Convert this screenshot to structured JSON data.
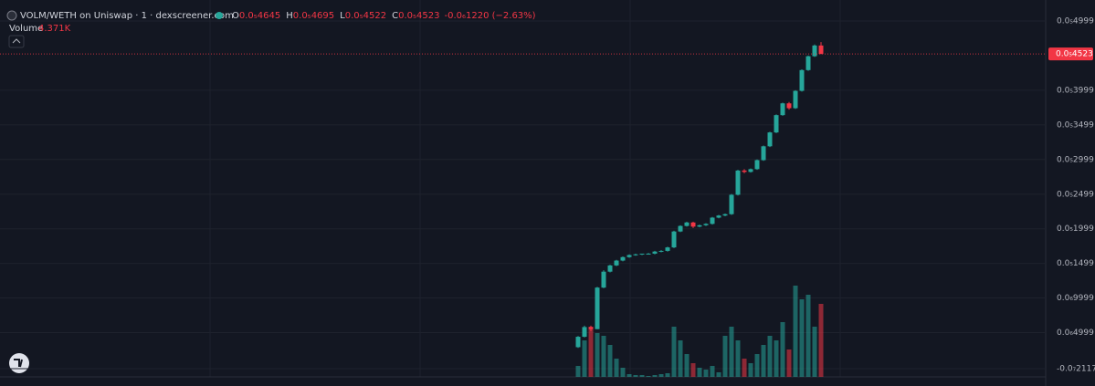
{
  "chart_data": {
    "type": "candlestick",
    "title": "VOLM/WETH on Uniswap · 1 · dexscreener.com",
    "legend": [
      {
        "key": "O",
        "value": "0.0₅4645"
      },
      {
        "key": "H",
        "value": "0.0₅4695"
      },
      {
        "key": "L",
        "value": "0.0₅4522"
      },
      {
        "key": "C",
        "value": "0.0₅4523"
      }
    ],
    "change_label": "-0.0₆1220 (−2.63%)",
    "volume_title": "Volume",
    "volume_label": "4.371K",
    "last_price_label": "0.0₅4523",
    "up_color": "#26a69a",
    "down_color": "#f23645",
    "grid": true,
    "ylim": [
      -1.39e-07,
      5.302e-06
    ],
    "yticks": [
      {
        "value": 4.999e-06,
        "label": "0.0₅4999"
      },
      {
        "value": 3.999e-06,
        "label": "0.0₅3999"
      },
      {
        "value": 3.499e-06,
        "label": "0.0₅3499"
      },
      {
        "value": 2.999e-06,
        "label": "0.0₅2999"
      },
      {
        "value": 2.499e-06,
        "label": "0.0₅2499"
      },
      {
        "value": 1.999e-06,
        "label": "0.0₅1999"
      },
      {
        "value": 1.499e-06,
        "label": "0.0₅1499"
      },
      {
        "value": 9.999e-07,
        "label": "0.0₆9999"
      },
      {
        "value": 4.999e-07,
        "label": "0.0₆4999"
      },
      {
        "value": -2.117e-08,
        "label": "-0.0₇2117"
      }
    ],
    "candles": {
      "open": [
        2.9e-07,
        4.4e-07,
        5.8e-07,
        5.5e-07,
        1.15e-06,
        1.38e-06,
        1.47e-06,
        1.54e-06,
        1.59e-06,
        1.62e-06,
        1.63e-06,
        1.64e-06,
        1.64e-06,
        1.67e-06,
        1.68e-06,
        1.73e-06,
        1.96e-06,
        2.04e-06,
        2.09e-06,
        2.03e-06,
        2.05e-06,
        2.07e-06,
        2.16e-06,
        2.19e-06,
        2.21e-06,
        2.49e-06,
        2.84e-06,
        2.82e-06,
        2.86e-06,
        2.99e-06,
        3.19e-06,
        3.39e-06,
        3.64e-06,
        3.81e-06,
        3.74e-06,
        3.99e-06,
        4.29e-06,
        4.49e-06,
        4.645e-06
      ],
      "high": [
        4.5e-07,
        6e-07,
        6e-07,
        1.16e-06,
        1.4e-06,
        1.48e-06,
        1.55e-06,
        1.6e-06,
        1.63e-06,
        1.64e-06,
        1.64e-06,
        1.65e-06,
        1.68e-06,
        1.69e-06,
        1.74e-06,
        1.97e-06,
        2.05e-06,
        2.1e-06,
        2.1e-06,
        2.06e-06,
        2.08e-06,
        2.17e-06,
        2.2e-06,
        2.22e-06,
        2.5e-06,
        2.85e-06,
        2.86e-06,
        2.87e-06,
        3e-06,
        3.2e-06,
        3.4e-06,
        3.65e-06,
        3.82e-06,
        3.83e-06,
        4e-06,
        4.3e-06,
        4.5e-06,
        4.66e-06,
        4.695e-06
      ],
      "low": [
        2.8e-07,
        4.3e-07,
        5.2e-07,
        5.5e-07,
        1.14e-06,
        1.37e-06,
        1.46e-06,
        1.53e-06,
        1.58e-06,
        1.61e-06,
        1.62e-06,
        1.63e-06,
        1.63e-06,
        1.66e-06,
        1.67e-06,
        1.72e-06,
        1.95e-06,
        2.03e-06,
        2.01e-06,
        2.02e-06,
        2.04e-06,
        2.06e-06,
        2.15e-06,
        2.18e-06,
        2.2e-06,
        2.48e-06,
        2.8e-06,
        2.81e-06,
        2.85e-06,
        2.98e-06,
        3.18e-06,
        3.38e-06,
        3.63e-06,
        3.72e-06,
        3.73e-06,
        3.98e-06,
        4.28e-06,
        4.48e-06,
        4.522e-06
      ],
      "close": [
        4.4e-07,
        5.8e-07,
        5.5e-07,
        1.15e-06,
        1.38e-06,
        1.47e-06,
        1.54e-06,
        1.59e-06,
        1.62e-06,
        1.63e-06,
        1.64e-06,
        1.64e-06,
        1.67e-06,
        1.68e-06,
        1.73e-06,
        1.96e-06,
        2.04e-06,
        2.09e-06,
        2.03e-06,
        2.05e-06,
        2.07e-06,
        2.16e-06,
        2.19e-06,
        2.21e-06,
        2.49e-06,
        2.84e-06,
        2.82e-06,
        2.86e-06,
        2.99e-06,
        3.19e-06,
        3.39e-06,
        3.64e-06,
        3.81e-06,
        3.74e-06,
        3.99e-06,
        4.29e-06,
        4.49e-06,
        4.645e-06,
        4.523e-06
      ]
    },
    "volume": [
      12,
      40,
      55,
      48,
      45,
      35,
      20,
      10,
      3,
      2,
      2,
      1,
      2,
      3,
      4,
      55,
      40,
      25,
      15,
      10,
      8,
      12,
      5,
      45,
      55,
      40,
      20,
      15,
      25,
      35,
      45,
      40,
      60,
      30,
      100,
      85,
      90,
      55,
      80
    ]
  }
}
